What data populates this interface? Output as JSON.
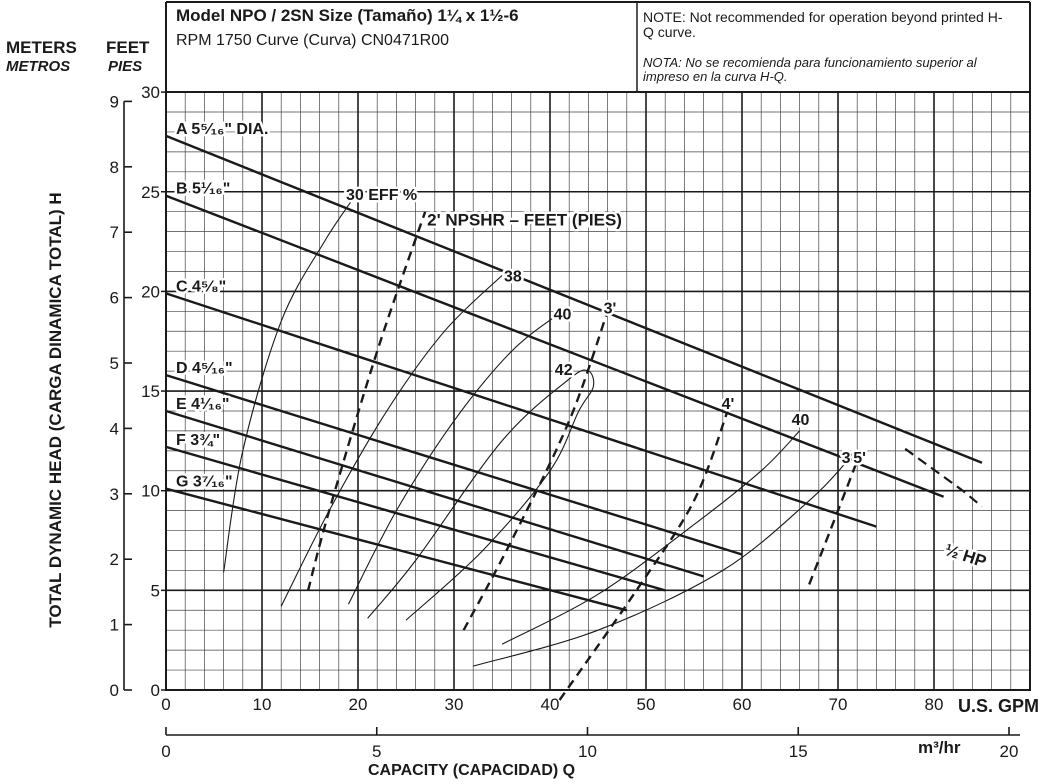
{
  "header": {
    "model_line": "Model NPO / 2SN Size (Tamaño) 1¼ x 1½-6",
    "rpm_line": "RPM 1750 Curve (Curva) CN0471R00",
    "note_en": "NOTE: Not recommended for operation beyond printed H-Q curve.",
    "note_es": "NOTA: No se recomienda para funcionamiento superior al impreso en la curva H-Q."
  },
  "axes": {
    "left_unit_1": "METERS",
    "left_unit_1_es": "METROS",
    "left_unit_2": "FEET",
    "left_unit_2_es": "PIES",
    "y_title": "TOTAL DYNAMIC HEAD (CARGA DINAMICA TOTAL) H",
    "x_title": "CAPACITY (CAPACIDAD) Q",
    "x_unit_gpm": "U.S. GPM",
    "x_unit_m3": "m³/hr"
  },
  "colors": {
    "ink": "#1a1a1a",
    "grid": "#333333",
    "paper": "#ffffff"
  },
  "chart_data": {
    "type": "line",
    "xlabel": "CAPACITY (CAPACIDAD) Q — U.S. GPM",
    "ylabel": "TOTAL DYNAMIC HEAD (CARGA DINAMICA TOTAL) H — FEET",
    "xlim": [
      0,
      90
    ],
    "ylim": [
      0,
      30
    ],
    "grid": true,
    "x_ticks_gpm": [
      0,
      10,
      20,
      30,
      40,
      50,
      60,
      70,
      80
    ],
    "x_ticks_m3hr": [
      0,
      5,
      10,
      15,
      20
    ],
    "y_ticks_feet": [
      0,
      5,
      10,
      15,
      20,
      25,
      30
    ],
    "y_ticks_meters": [
      0,
      1,
      2,
      3,
      4,
      5,
      6,
      7,
      8,
      9
    ],
    "impellers": [
      {
        "name": "A 5⁵⁄₁₆\" DIA.",
        "points": [
          [
            0,
            27.8
          ],
          [
            85,
            11.4
          ]
        ]
      },
      {
        "name": "B 5¹⁄₁₆\"",
        "points": [
          [
            0,
            24.8
          ],
          [
            81,
            9.7
          ]
        ]
      },
      {
        "name": "C 4⁵⁄₈\"",
        "points": [
          [
            0,
            19.9
          ],
          [
            74,
            8.2
          ]
        ]
      },
      {
        "name": "D 4⁵⁄₁₆\"",
        "points": [
          [
            0,
            15.8
          ],
          [
            60,
            6.8
          ]
        ]
      },
      {
        "name": "E 4¹⁄₁₆\"",
        "points": [
          [
            0,
            14.0
          ],
          [
            56,
            5.7
          ]
        ]
      },
      {
        "name": "F 3¾\"",
        "points": [
          [
            0,
            12.2
          ],
          [
            52,
            5.0
          ]
        ]
      },
      {
        "name": "G 3⁷⁄₁₆\"",
        "points": [
          [
            0,
            10.1
          ],
          [
            48,
            4.0
          ]
        ]
      }
    ],
    "efficiency_curves": [
      {
        "name": "30 EFF %",
        "points": [
          [
            6,
            5.9
          ],
          [
            8,
            12.0
          ],
          [
            12,
            18.5
          ],
          [
            16.5,
            22.5
          ],
          [
            20,
            25.0
          ]
        ]
      },
      {
        "name": "38",
        "points": [
          [
            12,
            4.2
          ],
          [
            17,
            9.0
          ],
          [
            23,
            14.0
          ],
          [
            29,
            18.0
          ],
          [
            35,
            20.8
          ]
        ]
      },
      {
        "name": "40",
        "points": [
          [
            19,
            4.3
          ],
          [
            24,
            9.0
          ],
          [
            30,
            13.5
          ],
          [
            36,
            17.0
          ],
          [
            41,
            18.9
          ]
        ]
      },
      {
        "name": "42",
        "points": [
          [
            25,
            3.5
          ],
          [
            33,
            7.0
          ],
          [
            40,
            11.0
          ],
          [
            43,
            14.0
          ],
          [
            44.5,
            15.2
          ],
          [
            44,
            16.0
          ],
          [
            42,
            15.6
          ],
          [
            35,
            12.5
          ],
          [
            26,
            6.5
          ],
          [
            21,
            3.6
          ]
        ]
      },
      {
        "name": "40",
        "points": [
          [
            35,
            2.3
          ],
          [
            45,
            4.8
          ],
          [
            55,
            8.3
          ],
          [
            62,
            11.0
          ],
          [
            66,
            13.0
          ]
        ]
      },
      {
        "name": "38",
        "points": [
          [
            32,
            1.2
          ],
          [
            45,
            3.0
          ],
          [
            58,
            6.0
          ],
          [
            67,
            9.5
          ],
          [
            71,
            11.5
          ]
        ]
      }
    ],
    "npsh_curves": [
      {
        "name": "2' NPSHR – FEET (PIES)",
        "points": [
          [
            14.8,
            5.0
          ],
          [
            17,
            9.0
          ],
          [
            22,
            17.0
          ],
          [
            27,
            24.0
          ]
        ]
      },
      {
        "name": "3'",
        "points": [
          [
            31,
            3.0
          ],
          [
            36,
            7.5
          ],
          [
            42,
            13.5
          ],
          [
            46,
            19.0
          ]
        ]
      },
      {
        "name": "4'",
        "points": [
          [
            41,
            -0.5
          ],
          [
            49,
            5.0
          ],
          [
            55,
            9.5
          ],
          [
            58.5,
            14.0
          ]
        ]
      },
      {
        "name": "5'",
        "points": [
          [
            67,
            5.3
          ],
          [
            70,
            9.0
          ],
          [
            72,
            11.5
          ]
        ]
      }
    ],
    "horsepower": [
      {
        "name": "½ HP",
        "points": [
          [
            77,
            12.1
          ],
          [
            83,
            10.0
          ],
          [
            85,
            9.2
          ]
        ]
      }
    ],
    "annotations": [
      "30 EFF %",
      "38",
      "40",
      "42",
      "40",
      "38",
      "2' NPSHR – FEET (PIES)",
      "3'",
      "4'",
      "5'",
      "½ HP"
    ]
  }
}
